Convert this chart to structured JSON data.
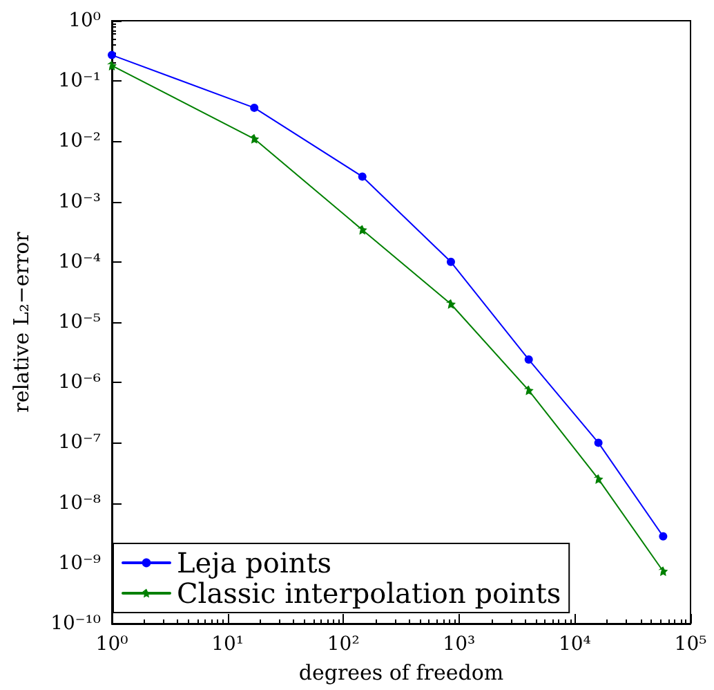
{
  "chart_data": {
    "type": "line",
    "xlabel": "degrees of freedom",
    "ylabel": "relative L₂−error",
    "log": "xy",
    "grid": false,
    "legend": "bottom left",
    "line_style": "solid",
    "xlim": [
      1,
      100000
    ],
    "ylim": [
      1e-10,
      1
    ],
    "xticks": [
      {
        "value": 1,
        "label": "10⁰"
      },
      {
        "value": 10,
        "label": "10¹"
      },
      {
        "value": 100,
        "label": "10²"
      },
      {
        "value": 1000,
        "label": "10³"
      },
      {
        "value": 10000,
        "label": "10⁴"
      },
      {
        "value": 100000,
        "label": "10⁵"
      }
    ],
    "yticks": [
      {
        "value": 1e-10,
        "label": "10⁻¹⁰"
      },
      {
        "value": 1e-09,
        "label": "10⁻⁹"
      },
      {
        "value": 1e-08,
        "label": "10⁻⁸"
      },
      {
        "value": 1e-07,
        "label": "10⁻⁷"
      },
      {
        "value": 1e-06,
        "label": "10⁻⁶"
      },
      {
        "value": 1e-05,
        "label": "10⁻⁵"
      },
      {
        "value": 0.0001,
        "label": "10⁻⁴"
      },
      {
        "value": 0.001,
        "label": "10⁻³"
      },
      {
        "value": 0.01,
        "label": "10⁻²"
      },
      {
        "value": 0.1,
        "label": "10⁻¹"
      },
      {
        "value": 1,
        "label": "10⁰"
      }
    ],
    "x": [
      1,
      17,
      146,
      850,
      4000,
      16000,
      58000
    ],
    "series": [
      {
        "name": "Leja points",
        "color": "#0000ff",
        "marker": "circle",
        "values": [
          0.27,
          0.036,
          0.0026,
          0.0001,
          2.4e-06,
          1e-07,
          2.8e-09
        ]
      },
      {
        "name": "Classic interpolation points",
        "color": "#008000",
        "marker": "star",
        "values": [
          0.18,
          0.011,
          0.00034,
          2e-05,
          7.4e-07,
          2.5e-08,
          7.4e-10
        ]
      }
    ]
  }
}
